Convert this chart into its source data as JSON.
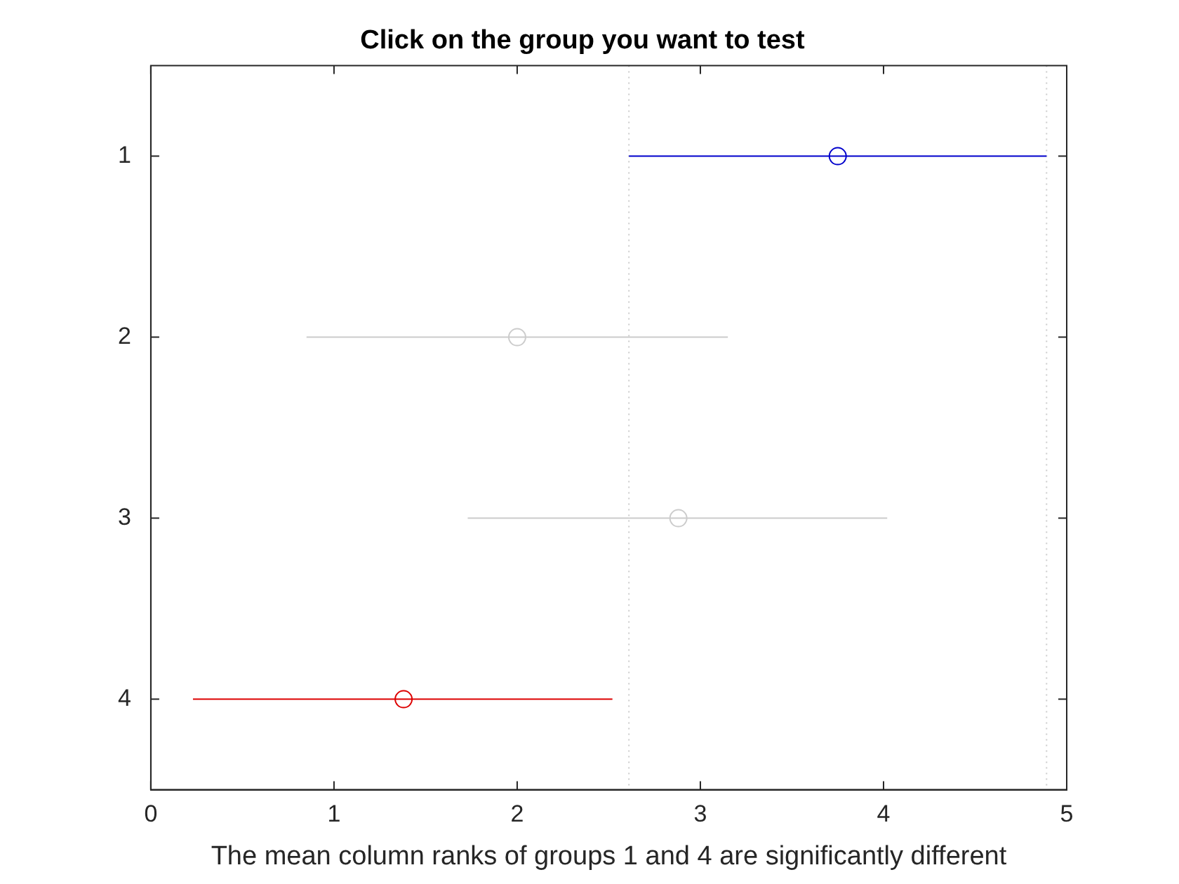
{
  "chart_data": {
    "type": "scatter",
    "orientation": "horizontal",
    "title": "Click on the group you want to test",
    "xlabel": "The mean column ranks of groups 1 and 4 are significantly different",
    "categories": [
      "1",
      "2",
      "3",
      "4"
    ],
    "values": [
      3.75,
      2.0,
      2.88,
      1.38
    ],
    "errors": [
      [
        2.61,
        4.89
      ],
      [
        0.85,
        3.15
      ],
      [
        1.73,
        4.02
      ],
      [
        0.23,
        2.52
      ]
    ],
    "colors": [
      "#0000cc",
      "#cccccc",
      "#cccccc",
      "#dd0000"
    ],
    "xlim": [
      0,
      5
    ],
    "xticks": [
      0,
      1,
      2,
      3,
      4,
      5
    ],
    "ref_lines": [
      {
        "axis": "x",
        "value": 2.61,
        "color": "#cccccc",
        "line_style": "dotted"
      },
      {
        "axis": "x",
        "value": 4.89,
        "color": "#cccccc",
        "line_style": "dotted"
      }
    ],
    "marker": "circle",
    "grid": false,
    "legend": false
  }
}
